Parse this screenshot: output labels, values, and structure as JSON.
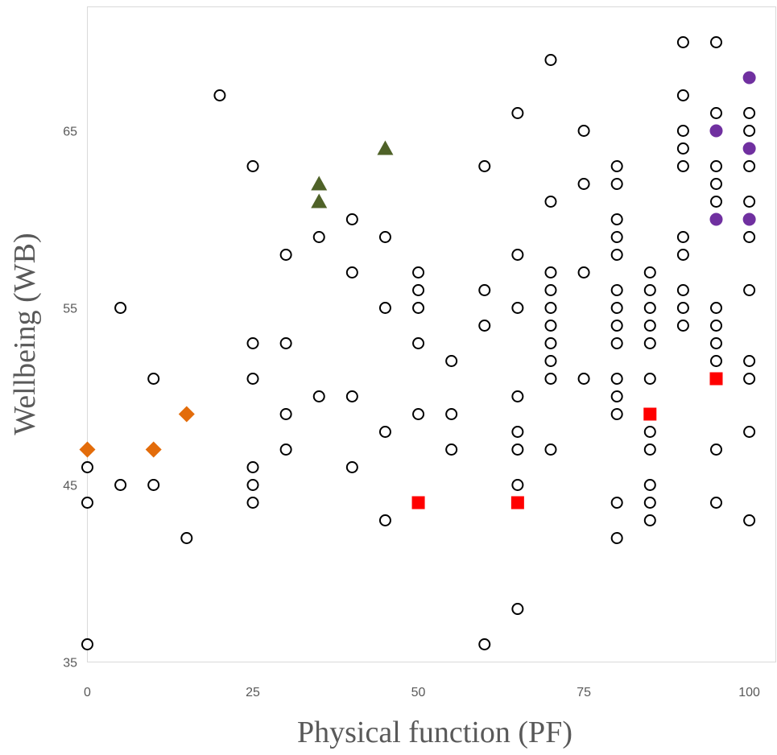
{
  "chart_data": {
    "type": "scatter",
    "xlabel": "Physical function (PF)",
    "ylabel": "Wellbeing (WB)",
    "xlim": [
      0,
      104
    ],
    "ylim": [
      35,
      72
    ],
    "xticks": [
      0,
      25,
      50,
      75,
      100
    ],
    "yticks": [
      35,
      45,
      55,
      65
    ],
    "grid": false,
    "legend": "none",
    "series": [
      {
        "marker": "open-circle",
        "color": "#000000",
        "points": [
          [
            0,
            46
          ],
          [
            0,
            44
          ],
          [
            0,
            36
          ],
          [
            5,
            55
          ],
          [
            5,
            45
          ],
          [
            10,
            51
          ],
          [
            10,
            45
          ],
          [
            15,
            42
          ],
          [
            20,
            67
          ],
          [
            25,
            63
          ],
          [
            25,
            53
          ],
          [
            25,
            51
          ],
          [
            25,
            46
          ],
          [
            25,
            45
          ],
          [
            25,
            44
          ],
          [
            30,
            58
          ],
          [
            30,
            53
          ],
          [
            30,
            49
          ],
          [
            30,
            47
          ],
          [
            35,
            59
          ],
          [
            35,
            50
          ],
          [
            40,
            60
          ],
          [
            40,
            57
          ],
          [
            40,
            50
          ],
          [
            40,
            46
          ],
          [
            45,
            59
          ],
          [
            45,
            55
          ],
          [
            45,
            48
          ],
          [
            45,
            43
          ],
          [
            50,
            57
          ],
          [
            50,
            56
          ],
          [
            50,
            55
          ],
          [
            50,
            53
          ],
          [
            50,
            49
          ],
          [
            55,
            52
          ],
          [
            55,
            49
          ],
          [
            55,
            47
          ],
          [
            60,
            63
          ],
          [
            60,
            56
          ],
          [
            60,
            54
          ],
          [
            60,
            36
          ],
          [
            65,
            66
          ],
          [
            65,
            58
          ],
          [
            65,
            55
          ],
          [
            65,
            50
          ],
          [
            65,
            48
          ],
          [
            65,
            47
          ],
          [
            65,
            45
          ],
          [
            65,
            38
          ],
          [
            70,
            69
          ],
          [
            70,
            61
          ],
          [
            70,
            57
          ],
          [
            70,
            56
          ],
          [
            70,
            55
          ],
          [
            70,
            54
          ],
          [
            70,
            53
          ],
          [
            70,
            52
          ],
          [
            70,
            51
          ],
          [
            70,
            47
          ],
          [
            75,
            65
          ],
          [
            75,
            62
          ],
          [
            75,
            57
          ],
          [
            75,
            51
          ],
          [
            80,
            63
          ],
          [
            80,
            62
          ],
          [
            80,
            60
          ],
          [
            80,
            59
          ],
          [
            80,
            58
          ],
          [
            80,
            56
          ],
          [
            80,
            55
          ],
          [
            80,
            54
          ],
          [
            80,
            53
          ],
          [
            80,
            51
          ],
          [
            80,
            50
          ],
          [
            80,
            49
          ],
          [
            80,
            44
          ],
          [
            80,
            42
          ],
          [
            85,
            57
          ],
          [
            85,
            56
          ],
          [
            85,
            55
          ],
          [
            85,
            54
          ],
          [
            85,
            53
          ],
          [
            85,
            51
          ],
          [
            85,
            48
          ],
          [
            85,
            47
          ],
          [
            85,
            45
          ],
          [
            85,
            44
          ],
          [
            85,
            43
          ],
          [
            90,
            70
          ],
          [
            90,
            67
          ],
          [
            90,
            65
          ],
          [
            90,
            64
          ],
          [
            90,
            63
          ],
          [
            90,
            59
          ],
          [
            90,
            58
          ],
          [
            90,
            56
          ],
          [
            90,
            55
          ],
          [
            90,
            54
          ],
          [
            95,
            70
          ],
          [
            95,
            66
          ],
          [
            95,
            63
          ],
          [
            95,
            62
          ],
          [
            95,
            61
          ],
          [
            95,
            55
          ],
          [
            95,
            54
          ],
          [
            95,
            53
          ],
          [
            95,
            52
          ],
          [
            95,
            47
          ],
          [
            95,
            44
          ],
          [
            100,
            66
          ],
          [
            100,
            65
          ],
          [
            100,
            63
          ],
          [
            100,
            61
          ],
          [
            100,
            59
          ],
          [
            100,
            56
          ],
          [
            100,
            52
          ],
          [
            100,
            51
          ],
          [
            100,
            48
          ],
          [
            100,
            43
          ]
        ]
      },
      {
        "marker": "diamond",
        "color": "#E36C0A",
        "points": [
          [
            0,
            47
          ],
          [
            10,
            47
          ],
          [
            15,
            49
          ]
        ]
      },
      {
        "marker": "triangle",
        "color": "#4F6228",
        "points": [
          [
            35,
            62
          ],
          [
            35,
            61
          ],
          [
            45,
            64
          ]
        ]
      },
      {
        "marker": "square",
        "color": "#FF0000",
        "points": [
          [
            50,
            44
          ],
          [
            65,
            44
          ],
          [
            85,
            49
          ],
          [
            95,
            51
          ]
        ]
      },
      {
        "marker": "filled-circle",
        "color": "#7030A0",
        "points": [
          [
            100,
            68
          ],
          [
            95,
            65
          ],
          [
            100,
            64
          ],
          [
            95,
            60
          ],
          [
            100,
            60
          ]
        ]
      }
    ]
  }
}
